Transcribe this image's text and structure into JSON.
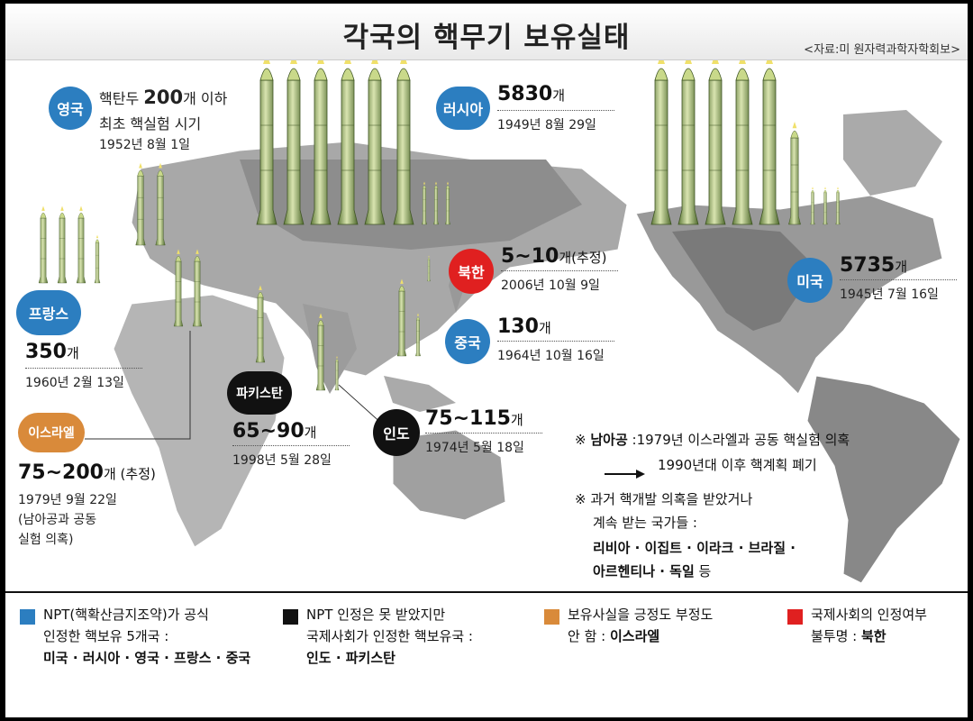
{
  "title": "각국의 핵무기 보유실태",
  "source": "<자료:미 원자력과학자학회보>",
  "countries": {
    "uk": {
      "badge": "영국",
      "line1_prefix": "핵탄두 ",
      "line1_num": "200",
      "line1_suffix": "개 이하",
      "line2": "최초 핵실험 시기",
      "date": "1952년 8월 1일"
    },
    "russia": {
      "badge": "러시아",
      "count": "5830",
      "unit": "개",
      "date": "1949년 8월 29일"
    },
    "northkorea": {
      "badge": "북한",
      "count": "5~10",
      "unit": "개(추정)",
      "date": "2006년 10월 9일"
    },
    "usa": {
      "badge": "미국",
      "count": "5735",
      "unit": "개",
      "date": "1945년 7월 16일"
    },
    "france": {
      "badge": "프랑스",
      "count": "350",
      "unit": "개",
      "date": "1960년 2월 13일"
    },
    "china": {
      "badge": "중국",
      "count": "130",
      "unit": "개",
      "date": "1964년 10월 16일"
    },
    "pakistan": {
      "badge": "파키스탄",
      "count": "65~90",
      "unit": "개",
      "date": "1998년 5월 28일"
    },
    "india": {
      "badge": "인도",
      "count": "75~115",
      "unit": "개",
      "date": "1974년 5월 18일"
    },
    "israel": {
      "badge": "이스라엘",
      "count": "75~200",
      "unit": "개 (추정)",
      "date": "1979년 9월 22일",
      "note1": "(남아공과 공동",
      "note2": "실험 의혹)"
    }
  },
  "notes": {
    "sa_mark": "※",
    "sa_label": "남아공",
    "sa_text": " :1979년 이스라엘과 공동 핵실험 의혹",
    "sa_arrow_text": "1990년대 이후 핵계획 폐기",
    "past_mark": "※",
    "past_line1": "과거 핵개발 의혹을 받았거나",
    "past_line2": "계속 받는 국가들 :",
    "past_line3": "리비아 · 이집트 · 이라크 · 브라질 ·",
    "past_line4_bold": "아르헨티나 · 독일",
    "past_line4_rest": " 등"
  },
  "legend": [
    {
      "color": "#2c7ec0",
      "line1": "NPT(핵확산금지조약)가 공식",
      "line2": "인정한 핵보유 5개국 :",
      "line3": "미국 · 러시아 · 영국 · 프랑스 · 중국"
    },
    {
      "color": "#111111",
      "line1": "NPT 인정은 못 받았지만",
      "line2": "국제사회가 인정한 핵보유국 :",
      "line3": "인도 · 파키스탄"
    },
    {
      "color": "#d98a3a",
      "line1": "보유사실을 긍정도 부정도",
      "line2_prefix": "안 함 : ",
      "line2_bold": "이스라엘"
    },
    {
      "color": "#e02020",
      "line1": "국제사회의 인정여부",
      "line2_prefix": "불투명 : ",
      "line2_bold": "북한"
    }
  ]
}
